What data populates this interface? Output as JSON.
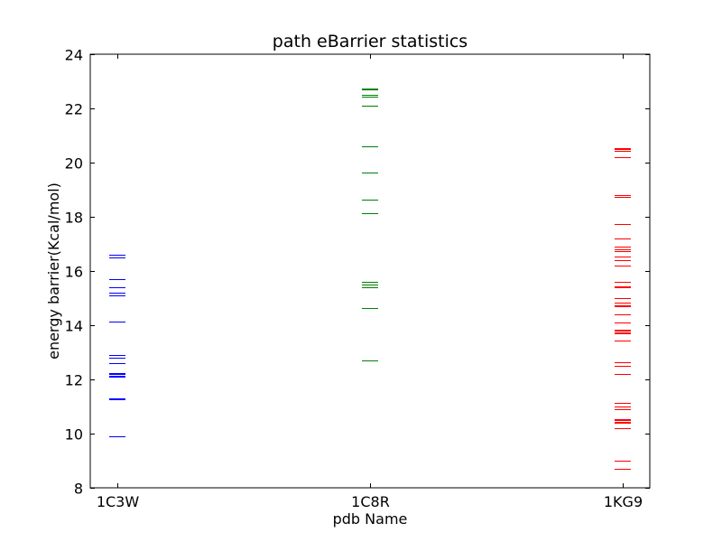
{
  "chart_data": {
    "type": "scatter",
    "title": "path eBarrier statistics",
    "xlabel": "pdb Name",
    "ylabel": "energy barrier(Kcal/mol)",
    "categories": [
      "1C3W",
      "1C8R",
      "1KG9"
    ],
    "ylim": [
      8,
      24
    ],
    "yticks": [
      8,
      10,
      12,
      14,
      16,
      18,
      20,
      22,
      24
    ],
    "grid": false,
    "marker": "horizontal-line",
    "series": [
      {
        "category": "1C3W",
        "color": "#0000ff",
        "values": [
          16.6,
          16.5,
          15.7,
          15.4,
          15.2,
          15.1,
          14.15,
          12.9,
          12.8,
          12.6,
          12.25,
          12.2,
          12.15,
          12.1,
          11.3,
          11.28,
          9.9
        ]
      },
      {
        "category": "1C8R",
        "color": "#008000",
        "values": [
          22.75,
          22.7,
          22.5,
          22.45,
          22.1,
          20.6,
          19.65,
          18.65,
          18.15,
          15.6,
          15.5,
          15.4,
          14.65,
          12.7
        ]
      },
      {
        "category": "1KG9",
        "color": "#ff0000",
        "values": [
          20.55,
          20.5,
          20.45,
          20.2,
          18.8,
          18.75,
          17.75,
          17.2,
          16.9,
          16.8,
          16.75,
          16.55,
          16.4,
          16.2,
          15.6,
          15.45,
          15.4,
          15.0,
          14.85,
          14.75,
          14.7,
          14.4,
          14.1,
          13.85,
          13.8,
          13.75,
          13.7,
          13.45,
          12.65,
          12.5,
          12.2,
          11.15,
          11.0,
          10.9,
          10.55,
          10.5,
          10.45,
          10.4,
          10.2,
          9.0,
          8.7
        ]
      }
    ]
  }
}
